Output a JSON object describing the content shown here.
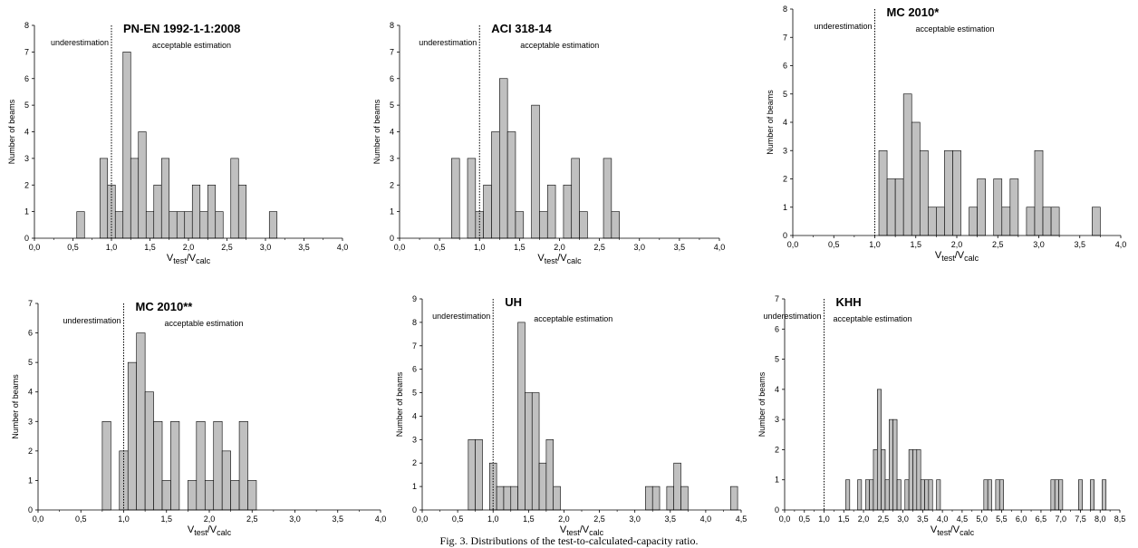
{
  "figure_caption": "Fig. 3. Distributions of the test-to-calculated-capacity ratio.",
  "chart_data": [
    {
      "type": "bar",
      "title": "PN-EN 1992-1-1:2008",
      "xlabel_main": "V",
      "xlabel_sub1": "test",
      "xlabel_slash": "/V",
      "xlabel_sub2": "calc",
      "ylabel": "Number of beams",
      "xlim": [
        0,
        4
      ],
      "ylim": [
        0,
        8
      ],
      "x_ticks": [
        "0,0",
        "0,5",
        "1,0",
        "1,5",
        "2,0",
        "2,5",
        "3,0",
        "3,5",
        "4,0"
      ],
      "x_tick_values": [
        0,
        0.5,
        1,
        1.5,
        2,
        2.5,
        3,
        3.5,
        4
      ],
      "y_ticks": [
        "0",
        "1",
        "2",
        "3",
        "4",
        "5",
        "6",
        "7",
        "8"
      ],
      "y_tick_values": [
        0,
        1,
        2,
        3,
        4,
        5,
        6,
        7,
        8
      ],
      "bin_width": 0.1,
      "divider_x": 1.0,
      "annotations": {
        "left": "underestimation",
        "right": "acceptable estimation"
      },
      "x": [
        0.6,
        0.9,
        1.0,
        1.1,
        1.2,
        1.3,
        1.4,
        1.5,
        1.6,
        1.7,
        1.8,
        1.9,
        2.0,
        2.1,
        2.2,
        2.3,
        2.4,
        2.6,
        2.7,
        3.1
      ],
      "values": [
        1,
        3,
        2,
        1,
        7,
        3,
        4,
        1,
        2,
        3,
        1,
        1,
        1,
        2,
        1,
        2,
        1,
        3,
        2,
        1
      ]
    },
    {
      "type": "bar",
      "title": "ACI 318-14",
      "xlabel_main": "V",
      "xlabel_sub1": "test",
      "xlabel_slash": "/V",
      "xlabel_sub2": "calc",
      "ylabel": "Number of beams",
      "xlim": [
        0,
        4
      ],
      "ylim": [
        0,
        8
      ],
      "x_ticks": [
        "0,0",
        "0,5",
        "1,0",
        "1,5",
        "2,0",
        "2,5",
        "3,0",
        "3,5",
        "4,0"
      ],
      "x_tick_values": [
        0,
        0.5,
        1,
        1.5,
        2,
        2.5,
        3,
        3.5,
        4
      ],
      "y_ticks": [
        "0",
        "1",
        "2",
        "3",
        "4",
        "5",
        "6",
        "7",
        "8"
      ],
      "y_tick_values": [
        0,
        1,
        2,
        3,
        4,
        5,
        6,
        7,
        8
      ],
      "bin_width": 0.1,
      "divider_x": 1.0,
      "annotations": {
        "left": "underestimation",
        "right": "acceptable estimation"
      },
      "x": [
        0.7,
        0.9,
        1.0,
        1.1,
        1.2,
        1.3,
        1.4,
        1.5,
        1.7,
        1.8,
        1.9,
        2.1,
        2.2,
        2.3,
        2.6,
        2.7
      ],
      "values": [
        3,
        3,
        1,
        2,
        4,
        6,
        4,
        1,
        5,
        1,
        2,
        2,
        3,
        1,
        3,
        1
      ]
    },
    {
      "type": "bar",
      "title": "MC 2010*",
      "xlabel_main": "V",
      "xlabel_sub1": "test",
      "xlabel_slash": "/V",
      "xlabel_sub2": "calc",
      "ylabel": "Number of beams",
      "xlim": [
        0,
        4
      ],
      "ylim": [
        0,
        8
      ],
      "x_ticks": [
        "0,0",
        "0,5",
        "1,0",
        "1,5",
        "2,0",
        "2,5",
        "3,0",
        "3,5",
        "4,0"
      ],
      "x_tick_values": [
        0,
        0.5,
        1,
        1.5,
        2,
        2.5,
        3,
        3.5,
        4
      ],
      "y_ticks": [
        "0",
        "1",
        "2",
        "3",
        "4",
        "5",
        "6",
        "7",
        "8"
      ],
      "y_tick_values": [
        0,
        1,
        2,
        3,
        4,
        5,
        6,
        7,
        8
      ],
      "bin_width": 0.1,
      "divider_x": 1.0,
      "annotations": {
        "left": "underestimation",
        "right": "acceptable estimation"
      },
      "x": [
        1.1,
        1.2,
        1.3,
        1.4,
        1.5,
        1.6,
        1.7,
        1.8,
        1.9,
        2.0,
        2.2,
        2.3,
        2.5,
        2.6,
        2.7,
        2.9,
        3.0,
        3.1,
        3.2,
        3.7
      ],
      "values": [
        3,
        2,
        2,
        5,
        4,
        3,
        1,
        1,
        3,
        3,
        1,
        2,
        2,
        1,
        2,
        1,
        3,
        1,
        1,
        1
      ]
    },
    {
      "type": "bar",
      "title": "MC 2010**",
      "xlabel_main": "V",
      "xlabel_sub1": "test",
      "xlabel_slash": "/V",
      "xlabel_sub2": "calc",
      "ylabel": "Number of beams",
      "xlim": [
        0,
        4
      ],
      "ylim": [
        0,
        7
      ],
      "x_ticks": [
        "0,0",
        "0,5",
        "1,0",
        "1,5",
        "2,0",
        "2,5",
        "3,0",
        "3,5",
        "4,0"
      ],
      "x_tick_values": [
        0,
        0.5,
        1,
        1.5,
        2,
        2.5,
        3,
        3.5,
        4
      ],
      "y_ticks": [
        "0",
        "1",
        "2",
        "3",
        "4",
        "5",
        "6",
        "7"
      ],
      "y_tick_values": [
        0,
        1,
        2,
        3,
        4,
        5,
        6,
        7
      ],
      "bin_width": 0.1,
      "divider_x": 1.0,
      "annotations": {
        "left": "underestimation",
        "right": "acceptable estimation"
      },
      "x": [
        0.8,
        1.0,
        1.1,
        1.2,
        1.3,
        1.4,
        1.5,
        1.6,
        1.8,
        1.9,
        2.0,
        2.1,
        2.2,
        2.3,
        2.4,
        2.5
      ],
      "values": [
        3,
        2,
        5,
        6,
        4,
        3,
        1,
        3,
        1,
        3,
        1,
        3,
        2,
        1,
        3,
        1
      ]
    },
    {
      "type": "bar",
      "title": "UH",
      "xlabel_main": "V",
      "xlabel_sub1": "test",
      "xlabel_slash": "/V",
      "xlabel_sub2": "calc",
      "ylabel": "Number of beams",
      "xlim": [
        0,
        4.5
      ],
      "ylim": [
        0,
        9
      ],
      "x_ticks": [
        "0,0",
        "0,5",
        "1,0",
        "1,5",
        "2,0",
        "2,5",
        "3,0",
        "3,5",
        "4,0",
        "4,5"
      ],
      "x_tick_values": [
        0,
        0.5,
        1,
        1.5,
        2,
        2.5,
        3,
        3.5,
        4,
        4.5
      ],
      "y_ticks": [
        "0",
        "1",
        "2",
        "3",
        "4",
        "5",
        "6",
        "7",
        "8",
        "9"
      ],
      "y_tick_values": [
        0,
        1,
        2,
        3,
        4,
        5,
        6,
        7,
        8,
        9
      ],
      "bin_width": 0.1,
      "divider_x": 1.0,
      "annotations": {
        "left": "underestimation",
        "right": "acceptable estimation"
      },
      "x": [
        0.7,
        0.8,
        1.0,
        1.1,
        1.2,
        1.3,
        1.4,
        1.5,
        1.6,
        1.7,
        1.8,
        1.9,
        3.2,
        3.3,
        3.5,
        3.6,
        3.7,
        4.4
      ],
      "values": [
        3,
        3,
        2,
        1,
        1,
        1,
        8,
        5,
        5,
        2,
        3,
        1,
        1,
        1,
        1,
        2,
        1,
        1
      ]
    },
    {
      "type": "bar",
      "title": "KHH",
      "xlabel_main": "V",
      "xlabel_sub1": "test",
      "xlabel_slash": "/V",
      "xlabel_sub2": "calc",
      "ylabel": "Number of beams",
      "xlim": [
        0,
        8.5
      ],
      "ylim": [
        0,
        7
      ],
      "x_ticks": [
        "0,0",
        "0,5",
        "1,0",
        "1,5",
        "2,0",
        "2,5",
        "3,0",
        "3,5",
        "4,0",
        "4,5",
        "5,0",
        "5,5",
        "6,0",
        "6,5",
        "7,0",
        "7,5",
        "8,0",
        "8,5"
      ],
      "x_tick_values": [
        0,
        0.5,
        1,
        1.5,
        2,
        2.5,
        3,
        3.5,
        4,
        4.5,
        5,
        5.5,
        6,
        6.5,
        7,
        7.5,
        8,
        8.5
      ],
      "y_ticks": [
        "0",
        "1",
        "2",
        "3",
        "4",
        "5",
        "6",
        "7"
      ],
      "y_tick_values": [
        0,
        1,
        2,
        3,
        4,
        5,
        6,
        7
      ],
      "bin_width": 0.1,
      "divider_x": 1.0,
      "annotations": {
        "left": "underestimation",
        "right": "acceptable estimation"
      },
      "x": [
        1.6,
        1.9,
        2.1,
        2.2,
        2.3,
        2.4,
        2.5,
        2.6,
        2.7,
        2.8,
        2.9,
        3.1,
        3.2,
        3.3,
        3.4,
        3.5,
        3.6,
        3.7,
        3.9,
        5.1,
        5.2,
        5.4,
        5.5,
        6.8,
        6.9,
        7.0,
        7.5,
        7.8,
        8.1
      ],
      "values": [
        1,
        1,
        1,
        1,
        2,
        4,
        2,
        1,
        3,
        3,
        1,
        1,
        2,
        2,
        2,
        1,
        1,
        1,
        1,
        1,
        1,
        1,
        1,
        1,
        1,
        1,
        1,
        1,
        1
      ]
    }
  ]
}
